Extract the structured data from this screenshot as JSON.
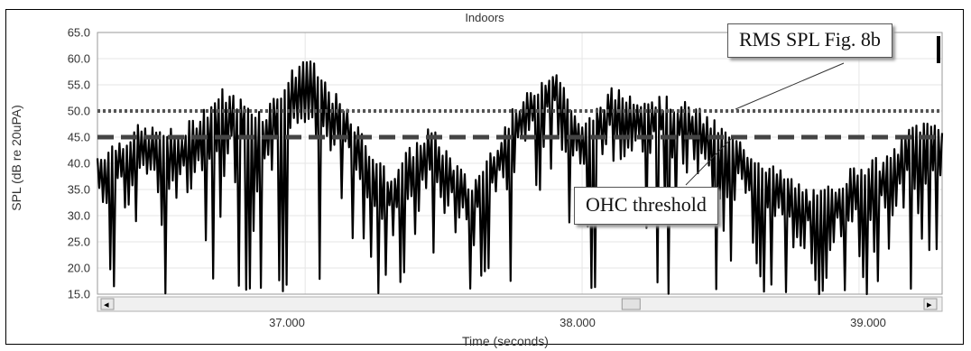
{
  "chart_data": {
    "type": "line",
    "title": "Indoors",
    "xlabel": "Time (seconds)",
    "ylabel": "SPL (dB re 20uPA)",
    "ylim": [
      15,
      65
    ],
    "xlim": [
      36.25,
      39.3
    ],
    "yticks": [
      "65.0",
      "60.0",
      "55.0",
      "50.0",
      "45.0",
      "40.0",
      "35.0",
      "30.0",
      "25.0",
      "20.0",
      "15.0"
    ],
    "xticks": [
      "37.000",
      "38.000",
      "39.000"
    ],
    "grid": true,
    "reference_lines": [
      {
        "name": "RMS SPL Fig. 8b",
        "y": 50,
        "style": "dotted"
      },
      {
        "name": "OHC threshold",
        "y": 45,
        "style": "dashed"
      }
    ],
    "series": [
      {
        "values": [
          {
            "x": 36.25,
            "y": 41
          },
          {
            "x": 36.4,
            "y": 46
          },
          {
            "x": 36.55,
            "y": 45
          },
          {
            "x": 36.7,
            "y": 53
          },
          {
            "x": 36.85,
            "y": 49
          },
          {
            "x": 37.0,
            "y": 60
          },
          {
            "x": 37.15,
            "y": 49
          },
          {
            "x": 37.3,
            "y": 37
          },
          {
            "x": 37.45,
            "y": 46
          },
          {
            "x": 37.6,
            "y": 35
          },
          {
            "x": 37.75,
            "y": 49
          },
          {
            "x": 37.9,
            "y": 58
          },
          {
            "x": 38.0,
            "y": 46
          },
          {
            "x": 38.1,
            "y": 53
          },
          {
            "x": 38.25,
            "y": 52
          },
          {
            "x": 38.4,
            "y": 50
          },
          {
            "x": 38.55,
            "y": 44
          },
          {
            "x": 38.7,
            "y": 38
          },
          {
            "x": 38.85,
            "y": 33
          },
          {
            "x": 39.0,
            "y": 39
          },
          {
            "x": 39.1,
            "y": 40
          },
          {
            "x": 39.2,
            "y": 47
          },
          {
            "x": 39.3,
            "y": 47
          }
        ]
      }
    ]
  },
  "scrollbar": {
    "left_arrow": "◂",
    "right_arrow": "▸",
    "position": 0.38
  }
}
